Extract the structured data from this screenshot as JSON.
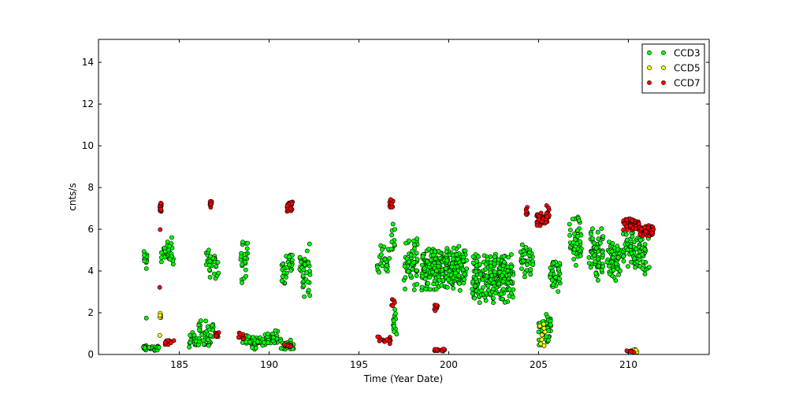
{
  "chart_data": {
    "type": "scatter",
    "title": "",
    "xlabel": "Time (Year Date)",
    "ylabel": "cnts/s",
    "xlim": [
      180.5,
      214.5
    ],
    "ylim": [
      0,
      15.1
    ],
    "xticks": [
      185,
      190,
      195,
      200,
      205,
      210
    ],
    "yticks": [
      0,
      2,
      4,
      6,
      8,
      10,
      12,
      14
    ],
    "grid": false,
    "legend_position": "top-right",
    "series": [
      {
        "name": "CCD3",
        "color": "#00ff00",
        "clusters": [
          {
            "x": [
              183.0,
              183.2
            ],
            "y": [
              3.9,
              5.2
            ],
            "n": 14
          },
          {
            "x": [
              183.0,
              183.2
            ],
            "y": [
              1.7,
              1.8
            ],
            "n": 1
          },
          {
            "x": [
              184.0,
              184.7
            ],
            "y": [
              3.9,
              5.8
            ],
            "n": 30
          },
          {
            "x": [
              186.4,
              187.2
            ],
            "y": [
              3.5,
              5.3
            ],
            "n": 30
          },
          {
            "x": [
              188.4,
              188.8
            ],
            "y": [
              3.1,
              5.9
            ],
            "n": 24
          },
          {
            "x": [
              190.7,
              191.3
            ],
            "y": [
              3.2,
              5.2
            ],
            "n": 30
          },
          {
            "x": [
              191.7,
              192.3
            ],
            "y": [
              2.6,
              5.4
            ],
            "n": 36
          },
          {
            "x": [
              196.0,
              196.7
            ],
            "y": [
              3.6,
              5.5
            ],
            "n": 26
          },
          {
            "x": [
              196.8,
              197.0
            ],
            "y": [
              4.2,
              6.3
            ],
            "n": 10
          },
          {
            "x": [
              197.5,
              198.3
            ],
            "y": [
              2.8,
              6.0
            ],
            "n": 55
          },
          {
            "x": [
              198.5,
              201.0
            ],
            "y": [
              3.0,
              5.3
            ],
            "n": 260
          },
          {
            "x": [
              201.3,
              203.6
            ],
            "y": [
              2.4,
              5.0
            ],
            "n": 240
          },
          {
            "x": [
              204.0,
              204.7
            ],
            "y": [
              3.5,
              5.3
            ],
            "n": 40
          },
          {
            "x": [
              205.6,
              206.2
            ],
            "y": [
              2.8,
              4.8
            ],
            "n": 40
          },
          {
            "x": [
              206.7,
              207.4
            ],
            "y": [
              4.0,
              6.7
            ],
            "n": 50
          },
          {
            "x": [
              207.8,
              208.6
            ],
            "y": [
              3.4,
              6.2
            ],
            "n": 60
          },
          {
            "x": [
              208.8,
              209.6
            ],
            "y": [
              3.4,
              5.7
            ],
            "n": 55
          },
          {
            "x": [
              209.7,
              210.5
            ],
            "y": [
              4.0,
              6.0
            ],
            "n": 45
          },
          {
            "x": [
              210.5,
              211.2
            ],
            "y": [
              3.6,
              6.0
            ],
            "n": 35
          },
          {
            "x": [
              183.0,
              183.9
            ],
            "y": [
              0.15,
              0.45
            ],
            "n": 30
          },
          {
            "x": [
              185.5,
              186.0
            ],
            "y": [
              0.3,
              1.1
            ],
            "n": 20
          },
          {
            "x": [
              186.0,
              186.9
            ],
            "y": [
              0.3,
              1.7
            ],
            "n": 45
          },
          {
            "x": [
              188.5,
              189.5
            ],
            "y": [
              0.2,
              1.0
            ],
            "n": 40
          },
          {
            "x": [
              189.6,
              190.5
            ],
            "y": [
              0.3,
              1.2
            ],
            "n": 40
          },
          {
            "x": [
              190.6,
              191.4
            ],
            "y": [
              0.1,
              0.9
            ],
            "n": 25
          },
          {
            "x": [
              196.9,
              197.1
            ],
            "y": [
              0.9,
              2.3
            ],
            "n": 14
          },
          {
            "x": [
              205.0,
              205.7
            ],
            "y": [
              0.3,
              2.0
            ],
            "n": 40
          }
        ]
      },
      {
        "name": "CCD5",
        "color": "#ffff00",
        "clusters": [
          {
            "x": [
              183.9,
              184.0
            ],
            "y": [
              1.7,
              2.1
            ],
            "n": 7
          },
          {
            "x": [
              183.9,
              184.0
            ],
            "y": [
              0.9,
              1.0
            ],
            "n": 1
          },
          {
            "x": [
              205.0,
              205.4
            ],
            "y": [
              0.2,
              1.6
            ],
            "n": 8
          },
          {
            "x": [
              210.3,
              210.5
            ],
            "y": [
              0.1,
              0.3
            ],
            "n": 4
          }
        ]
      },
      {
        "name": "CCD7",
        "color": "#ff0000",
        "clusters": [
          {
            "x": [
              183.9,
              184.0
            ],
            "y": [
              6.8,
              7.4
            ],
            "n": 14
          },
          {
            "x": [
              183.9,
              184.0
            ],
            "y": [
              5.9,
              6.0
            ],
            "n": 1
          },
          {
            "x": [
              183.9,
              184.0
            ],
            "y": [
              3.2,
              3.3
            ],
            "n": 1
          },
          {
            "x": [
              186.7,
              186.8
            ],
            "y": [
              7.0,
              7.5
            ],
            "n": 12
          },
          {
            "x": [
              191.0,
              191.3
            ],
            "y": [
              6.7,
              7.4
            ],
            "n": 24
          },
          {
            "x": [
              196.7,
              196.9
            ],
            "y": [
              6.9,
              7.6
            ],
            "n": 12
          },
          {
            "x": [
              204.3,
              204.4
            ],
            "y": [
              6.6,
              7.1
            ],
            "n": 8
          },
          {
            "x": [
              204.9,
              205.5
            ],
            "y": [
              6.1,
              6.9
            ],
            "n": 40
          },
          {
            "x": [
              205.4,
              205.6
            ],
            "y": [
              6.3,
              7.2
            ],
            "n": 14
          },
          {
            "x": [
              209.7,
              210.6
            ],
            "y": [
              5.9,
              6.6
            ],
            "n": 50
          },
          {
            "x": [
              210.6,
              211.4
            ],
            "y": [
              5.6,
              6.3
            ],
            "n": 50
          },
          {
            "x": [
              184.2,
              184.7
            ],
            "y": [
              0.4,
              0.7
            ],
            "n": 12
          },
          {
            "x": [
              187.0,
              187.2
            ],
            "y": [
              0.8,
              1.1
            ],
            "n": 10
          },
          {
            "x": [
              188.3,
              188.6
            ],
            "y": [
              0.6,
              1.2
            ],
            "n": 10
          },
          {
            "x": [
              190.8,
              191.3
            ],
            "y": [
              0.3,
              0.5
            ],
            "n": 12
          },
          {
            "x": [
              196.0,
              196.8
            ],
            "y": [
              0.5,
              0.9
            ],
            "n": 16
          },
          {
            "x": [
              196.8,
              197.0
            ],
            "y": [
              2.1,
              2.8
            ],
            "n": 5
          },
          {
            "x": [
              199.2,
              199.4
            ],
            "y": [
              2.0,
              2.5
            ],
            "n": 8
          },
          {
            "x": [
              199.2,
              199.9
            ],
            "y": [
              0.1,
              0.3
            ],
            "n": 14
          },
          {
            "x": [
              209.9,
              210.4
            ],
            "y": [
              0.1,
              0.2
            ],
            "n": 8
          }
        ]
      }
    ]
  }
}
